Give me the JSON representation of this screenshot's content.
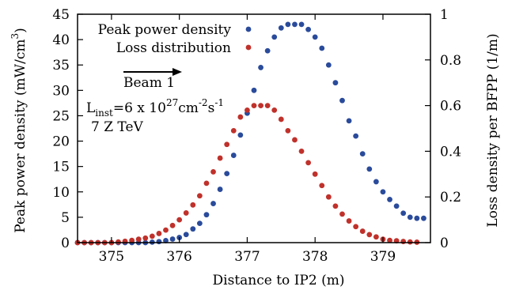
{
  "chart_data": {
    "type": "scatter",
    "xlabel": "Distance to IP2 (m)",
    "ylabel": "Peak power density (mW/cm",
    "ylabel_sup": "3",
    "ylabel_end": ")",
    "y2label": "Loss density per BFPP (1/m)",
    "xlim": [
      374.5,
      379.7
    ],
    "ylim": [
      0,
      45
    ],
    "y2lim": [
      0,
      1
    ],
    "xticks": [
      "375",
      "376",
      "377",
      "378",
      "379"
    ],
    "yticks": [
      "0",
      "5",
      "10",
      "15",
      "20",
      "25",
      "30",
      "35",
      "40",
      "45"
    ],
    "y2ticks": [
      "0",
      "0.2",
      "0.4",
      "0.6",
      "0.8",
      "1"
    ],
    "legend_position": "top-left",
    "series": [
      {
        "name": "Peak power density",
        "axis": "left",
        "color": "#2a4b9b",
        "x": [
          374.5,
          374.6,
          374.7,
          374.8,
          374.9,
          375.0,
          375.1,
          375.2,
          375.3,
          375.4,
          375.5,
          375.6,
          375.7,
          375.8,
          375.9,
          376.0,
          376.1,
          376.2,
          376.3,
          376.4,
          376.5,
          376.6,
          376.7,
          376.8,
          376.9,
          377.0,
          377.1,
          377.2,
          377.3,
          377.4,
          377.5,
          377.6,
          377.7,
          377.8,
          377.9,
          378.0,
          378.1,
          378.2,
          378.3,
          378.4,
          378.5,
          378.6,
          378.7,
          378.8,
          378.9,
          379.0,
          379.1,
          379.2,
          379.3,
          379.4,
          379.5,
          379.6
        ],
        "y": [
          0,
          0,
          0,
          0,
          0,
          0,
          0,
          0,
          0,
          0,
          0,
          0.1,
          0.2,
          0.4,
          0.7,
          1.0,
          1.6,
          2.7,
          3.8,
          5.5,
          7.7,
          10.5,
          13.6,
          17.2,
          21.2,
          25.5,
          30.0,
          34.5,
          37.8,
          40.5,
          42.3,
          43.0,
          43.0,
          43.0,
          42.0,
          40.5,
          38.3,
          35.0,
          31.5,
          28.0,
          24.0,
          21.0,
          17.5,
          14.5,
          12.0,
          10.0,
          8.5,
          7.2,
          5.8,
          5.0,
          4.8,
          4.8
        ]
      },
      {
        "name": "Loss distribution",
        "axis": "right",
        "color": "#c0312b",
        "x": [
          374.5,
          374.6,
          374.7,
          374.8,
          374.9,
          375.0,
          375.1,
          375.2,
          375.3,
          375.4,
          375.5,
          375.6,
          375.7,
          375.8,
          375.9,
          376.0,
          376.1,
          376.2,
          376.3,
          376.4,
          376.5,
          376.6,
          376.7,
          376.8,
          376.9,
          377.0,
          377.1,
          377.2,
          377.3,
          377.4,
          377.5,
          377.6,
          377.7,
          377.8,
          377.9,
          378.0,
          378.1,
          378.2,
          378.3,
          378.4,
          378.5,
          378.6,
          378.7,
          378.8,
          378.9,
          379.0,
          379.1,
          379.2,
          379.3,
          379.4,
          379.5
        ],
        "y": [
          0,
          0,
          0,
          0,
          0,
          0,
          0.003,
          0.006,
          0.01,
          0.015,
          0.02,
          0.028,
          0.04,
          0.055,
          0.075,
          0.1,
          0.13,
          0.165,
          0.205,
          0.26,
          0.31,
          0.37,
          0.43,
          0.49,
          0.55,
          0.58,
          0.6,
          0.6,
          0.6,
          0.58,
          0.54,
          0.49,
          0.45,
          0.4,
          0.35,
          0.3,
          0.25,
          0.2,
          0.16,
          0.125,
          0.095,
          0.07,
          0.05,
          0.035,
          0.025,
          0.015,
          0.01,
          0.008,
          0.005,
          0.003,
          0.002
        ]
      }
    ],
    "annotations": {
      "arrow_label": "Beam 1",
      "lum_prefix": "L",
      "lum_sub": "inst",
      "lum_mid": "=6 x 10",
      "lum_sup1": "27",
      "lum_unit1": "cm",
      "lum_sup2": "-2",
      "lum_unit2": "s",
      "lum_sup3": "-1",
      "energy": "7 Z TeV"
    }
  }
}
